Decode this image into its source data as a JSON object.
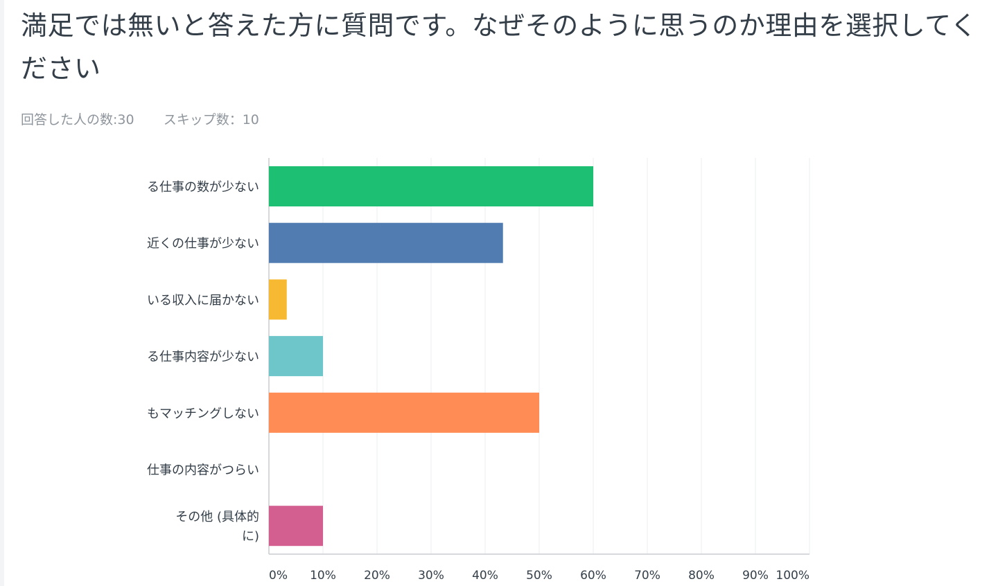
{
  "question": {
    "title": "満足では無いと答えた方に質問です。なぜそのように思うのか理由を選択してください"
  },
  "stats": {
    "answered_label": "回答した人の数: ",
    "answered_count": "30",
    "skipped_label": "スキップ数： ",
    "skipped_count": "10"
  },
  "chart_data": {
    "type": "bar",
    "orientation": "horizontal",
    "title": "満足では無いと答えた方に質問です。なぜそのように思うのか理由を選択してください",
    "categories": [
      "る仕事の数が少ない",
      "近くの仕事が少ない",
      "いる収入に届かない",
      "る仕事内容が少ない",
      "もマッチングしない",
      "仕事の内容がつらい",
      "その他 (具体的に)"
    ],
    "category_lines": [
      [
        "る仕事の数が少ない"
      ],
      [
        "近くの仕事が少ない"
      ],
      [
        "いる収入に届かない"
      ],
      [
        "る仕事内容が少ない"
      ],
      [
        "もマッチングしない"
      ],
      [
        "仕事の内容がつらい"
      ],
      [
        "その他 (具体的",
        "に)"
      ]
    ],
    "values": [
      60,
      43.3,
      3.3,
      10,
      50,
      0,
      10
    ],
    "unit": "%",
    "colors": [
      "#1dbf73",
      "#507cb1",
      "#f7b932",
      "#6ec6ca",
      "#ff8b55",
      "#e8e8e8",
      "#d25f90"
    ],
    "xlim": [
      0,
      100
    ],
    "xticks": [
      0,
      10,
      20,
      30,
      40,
      50,
      60,
      70,
      80,
      90,
      100
    ],
    "xtick_labels": [
      "0%",
      "10%",
      "20%",
      "30%",
      "40%",
      "50%",
      "60%",
      "70%",
      "80%",
      "90%",
      "100%"
    ],
    "grid": true,
    "legend": "none"
  }
}
